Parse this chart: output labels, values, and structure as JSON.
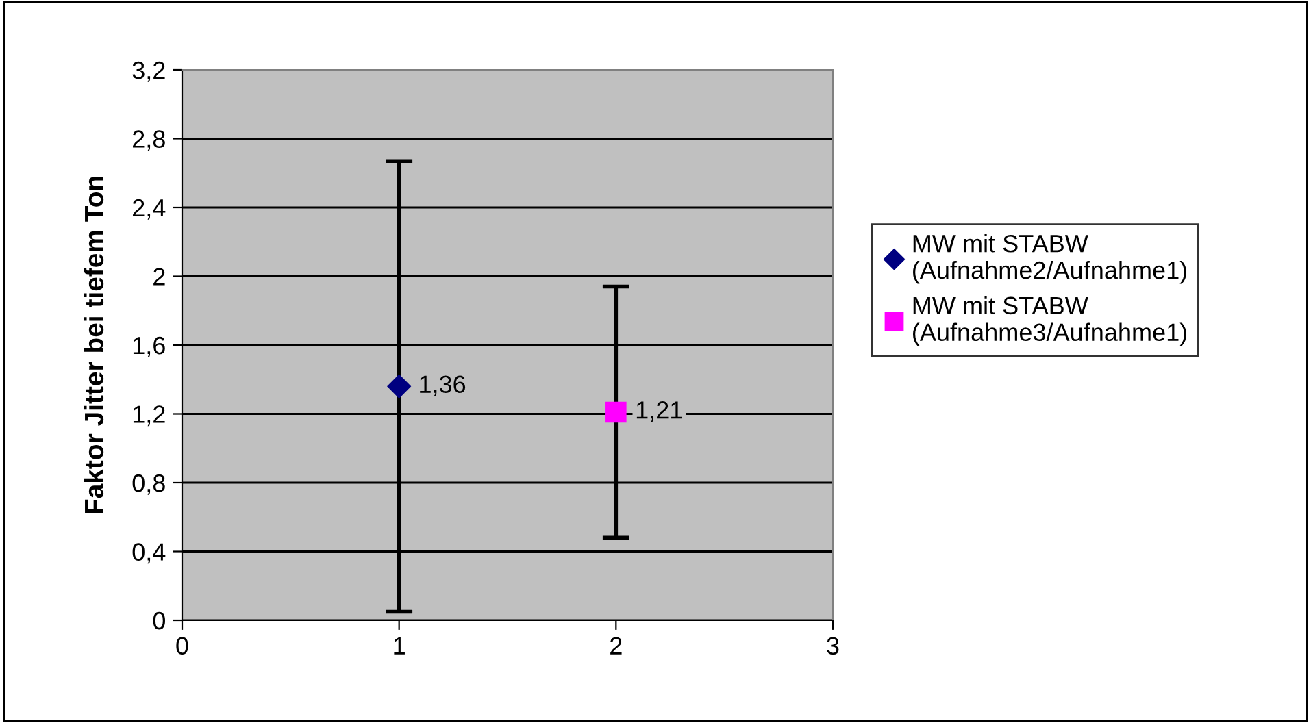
{
  "chart_data": {
    "type": "scatter",
    "ylabel": "Faktor Jitter bei tiefem Ton",
    "series": [
      {
        "name": "MW mit STABW\n(Aufnahme2/Aufnahme1)",
        "color": "#000080",
        "x": [
          1
        ],
        "values": [
          1.36
        ],
        "errors": [
          1.31
        ],
        "value_labels": [
          "1,36"
        ],
        "marker": "diamond"
      },
      {
        "name": "MW mit STABW\n(Aufnahme3/Aufnahme1)",
        "color": "#ff00ff",
        "x": [
          2
        ],
        "values": [
          1.21
        ],
        "errors": [
          0.73
        ],
        "value_labels": [
          "1,21"
        ],
        "marker": "square"
      }
    ],
    "xlim": [
      0,
      3
    ],
    "xticks": [
      0,
      1,
      2,
      3
    ],
    "ylim": [
      0,
      3.2
    ],
    "yticks": [
      0,
      {
        "value": 0.4,
        "label": "0,4"
      },
      {
        "value": 0.8,
        "label": "0,8"
      },
      {
        "value": 1.2,
        "label": "1,2"
      },
      {
        "value": 1.6,
        "label": "1,6"
      },
      2,
      {
        "value": 2.4,
        "label": "2,4"
      },
      {
        "value": 2.8,
        "label": "2,8"
      },
      {
        "value": 3.2,
        "label": "3,2"
      }
    ],
    "grid": "y",
    "legend": "right"
  }
}
